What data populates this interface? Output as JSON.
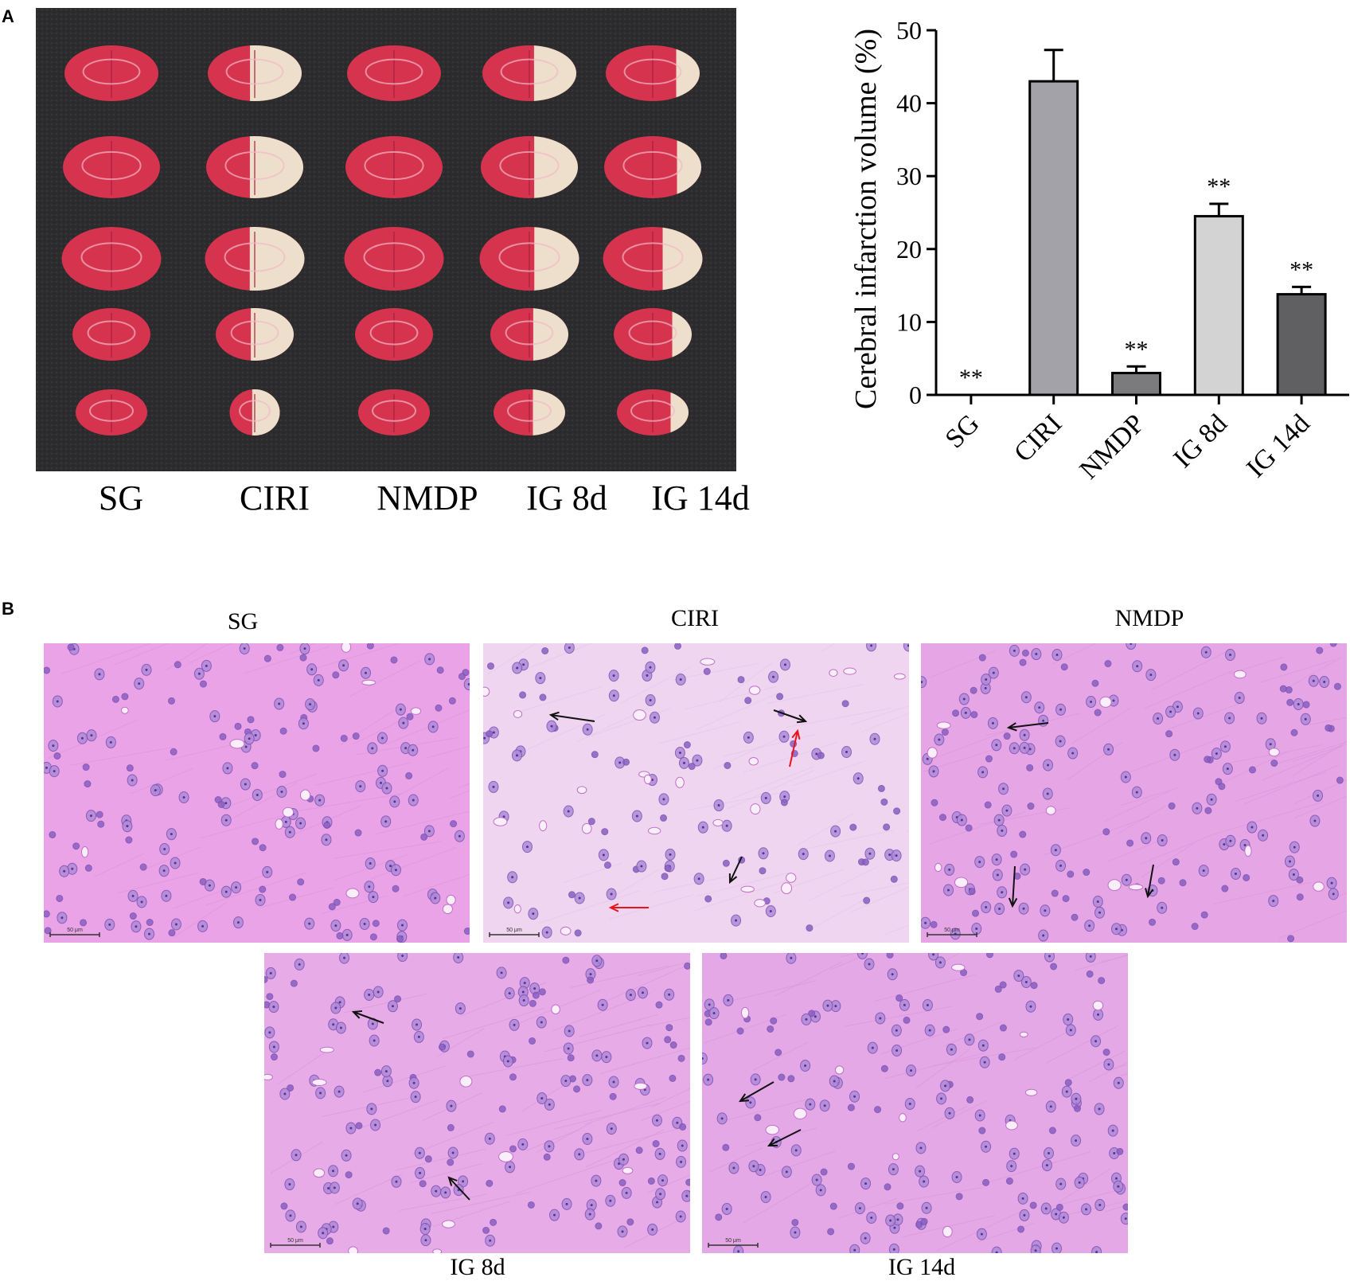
{
  "panel_a": {
    "letter": "A",
    "photo_labels": [
      "SG",
      "CIRI",
      "NMDP",
      "IG 8d",
      "IG 14d"
    ]
  },
  "panel_b": {
    "letter": "B",
    "titles": [
      "SG",
      "CIRI",
      "NMDP",
      "IG 8d",
      "IG 14d"
    ],
    "scale_bar": "50 μm"
  },
  "colors": {
    "stain_red": "#d6334f",
    "infarct": "#efe9d3",
    "he_pink": "#e39be0",
    "nucleus": "#8a5fc2"
  },
  "chart_data": {
    "type": "bar",
    "categories": [
      "SG",
      "CIRI",
      "NMDP",
      "IG 8d",
      "IG 14d"
    ],
    "values": [
      0,
      43,
      3,
      24.5,
      13.8
    ],
    "errors": [
      0,
      4.3,
      0.9,
      1.7,
      1.0
    ],
    "significance": [
      "**",
      "",
      "**",
      "**",
      "**"
    ],
    "bar_colors": [
      "#ffffff",
      "#a2a2a8",
      "#7b7b7e",
      "#d3d3d3",
      "#606062"
    ],
    "ylabel": "Cerebral infarction volume (%)",
    "ylim": [
      0,
      50
    ],
    "yticks": [
      0,
      10,
      20,
      30,
      40,
      50
    ],
    "grid": false
  }
}
